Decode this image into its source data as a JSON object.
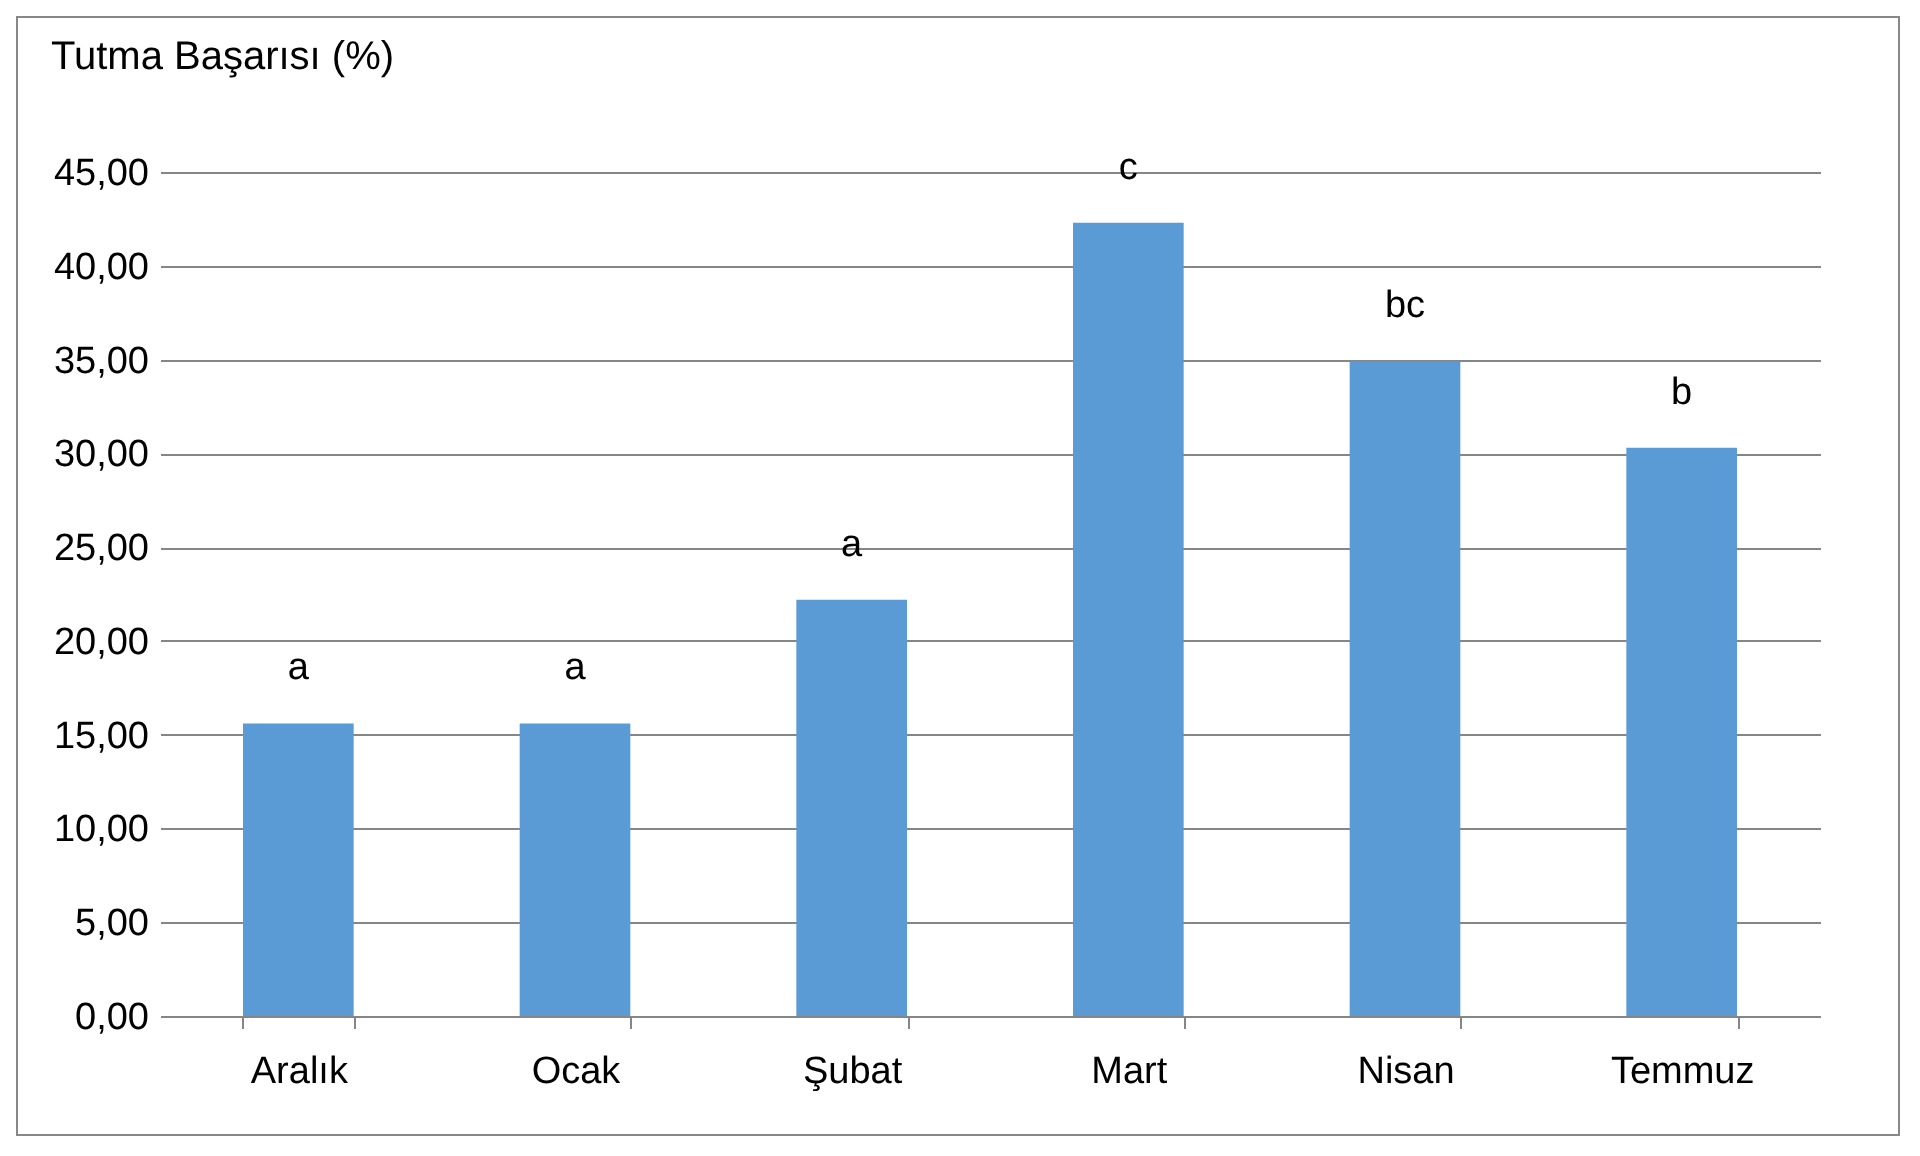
{
  "chart_data": {
    "type": "bar",
    "ylabel": "Tutma Başarısı (%)",
    "categories": [
      "Aralık",
      "Ocak",
      "Şubat",
      "Mart",
      "Nisan",
      "Temmuz"
    ],
    "values": [
      15.6,
      15.6,
      22.2,
      42.3,
      34.9,
      30.3
    ],
    "color": "#5b9bd5",
    "ylim": [
      0,
      45
    ],
    "yticks": [
      {
        "value": 0,
        "label": "0,00"
      },
      {
        "value": 5,
        "label": "5,00"
      },
      {
        "value": 10,
        "label": "10,00"
      },
      {
        "value": 15,
        "label": "15,00"
      },
      {
        "value": 20,
        "label": "20,00"
      },
      {
        "value": 25,
        "label": "25,00"
      },
      {
        "value": 30,
        "label": "30,00"
      },
      {
        "value": 35,
        "label": "35,00"
      },
      {
        "value": 40,
        "label": "40,00"
      },
      {
        "value": 45,
        "label": "45,00"
      }
    ],
    "grid": "y",
    "annotations": [
      {
        "text": "a",
        "x": "Aralık",
        "y": 15.6
      },
      {
        "text": "a",
        "x": "Ocak",
        "y": 15.6
      },
      {
        "text": "a",
        "x": "Şubat",
        "y": 22.2
      },
      {
        "text": "c",
        "x": "Mart",
        "y": 42.3
      },
      {
        "text": "bc",
        "x": "Nisan",
        "y": 34.9
      },
      {
        "text": "b",
        "x": "Temmuz",
        "y": 30.3
      }
    ]
  }
}
